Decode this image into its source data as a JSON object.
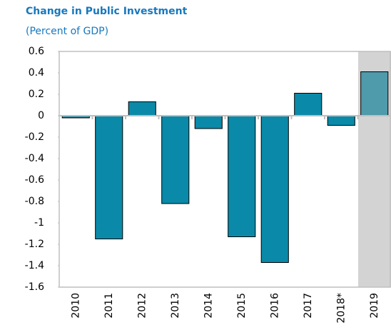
{
  "chart_data": {
    "type": "bar",
    "title": "Change in Public Investment",
    "subtitle": "(Percent of GDP)",
    "categories": [
      "2010",
      "2011",
      "2012",
      "2013",
      "2014",
      "2015",
      "2016",
      "2017",
      "2018*",
      "2019"
    ],
    "values": [
      -0.02,
      -1.15,
      0.13,
      -0.82,
      -0.12,
      -1.13,
      -1.37,
      0.21,
      -0.09,
      0.41
    ],
    "colors": [
      "#0a8aa8",
      "#0a8aa8",
      "#0a8aa8",
      "#0a8aa8",
      "#0a8aa8",
      "#0a8aa8",
      "#0a8aa8",
      "#0a8aa8",
      "#0a8aa8",
      "#4f9aab"
    ],
    "ylim": [
      -1.6,
      0.6
    ],
    "yticks": [
      0.6,
      0.4,
      0.2,
      0,
      -0.2,
      -0.4,
      -0.6,
      -0.8,
      -1,
      -1.2,
      -1.4,
      -1.6
    ],
    "grid": false
  }
}
